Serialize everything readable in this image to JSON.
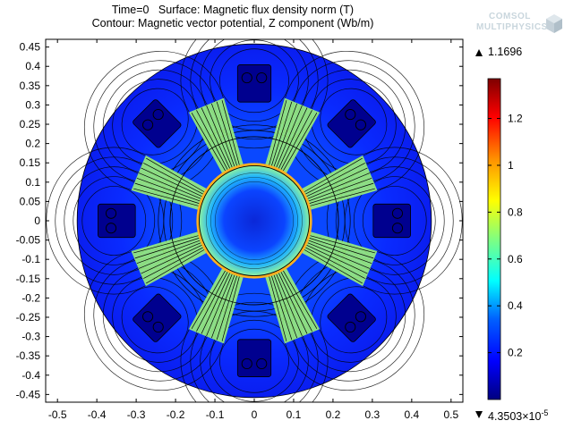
{
  "chart_data": {
    "type": "heatmap",
    "time_label": "Time=0",
    "surface_label": "Surface: Magnetic flux density norm (T)",
    "contour_label": "Contour: Magnetic vector potential, Z component (Wb/m)",
    "xlim": [
      -0.53,
      0.53
    ],
    "ylim": [
      -0.47,
      0.47
    ],
    "x_ticks": [
      -0.5,
      -0.4,
      -0.3,
      -0.2,
      -0.1,
      0,
      0.1,
      0.2,
      0.3,
      0.4,
      0.5
    ],
    "y_ticks": [
      0.45,
      0.4,
      0.35,
      0.3,
      0.25,
      0.2,
      0.15,
      0.1,
      0.05,
      0,
      -0.05,
      -0.1,
      -0.15,
      -0.2,
      -0.25,
      -0.3,
      -0.35,
      -0.4,
      -0.45
    ],
    "x_tick_labels": [
      "-0.5",
      "-0.4",
      "-0.3",
      "-0.2",
      "-0.1",
      "0",
      "0.1",
      "0.2",
      "0.3",
      "0.4",
      "0.5"
    ],
    "y_tick_labels": [
      "0.45",
      "0.4",
      "0.35",
      "0.3",
      "0.25",
      "0.2",
      "0.15",
      "0.1",
      "0.05",
      "0",
      "-0.05",
      "-0.1",
      "-0.15",
      "-0.2",
      "-0.25",
      "-0.3",
      "-0.35",
      "-0.4",
      "-0.45"
    ],
    "colorbar": {
      "max_label": "1.1696",
      "min_label_mantissa": "4.3503×10",
      "min_label_exponent": "-5",
      "range": [
        0,
        1.37
      ],
      "ticks": [
        1.2,
        1,
        0.8,
        0.6,
        0.4,
        0.2
      ],
      "tick_labels": [
        "1.2",
        "1",
        "0.8",
        "0.6",
        "0.4",
        "0.2"
      ],
      "colors": [
        "#00007f",
        "#0000ff",
        "#0080ff",
        "#00ffff",
        "#80ff80",
        "#ffff00",
        "#ff8000",
        "#ff0000",
        "#7f0000"
      ]
    },
    "stator_outer_radius": 0.45,
    "stator_inner_radius": 0.23,
    "rotor_radius": 0.14,
    "slot_count": 8,
    "rotor_tooth_count": 8
  },
  "logo": {
    "line1": "COMSOL",
    "line2": "MULTIPHYSICS"
  },
  "colors": {
    "background": "#ffffff",
    "stator_field": "#0a1eff",
    "slot": "#00008f",
    "rotor_core": "#0b2fe0"
  }
}
